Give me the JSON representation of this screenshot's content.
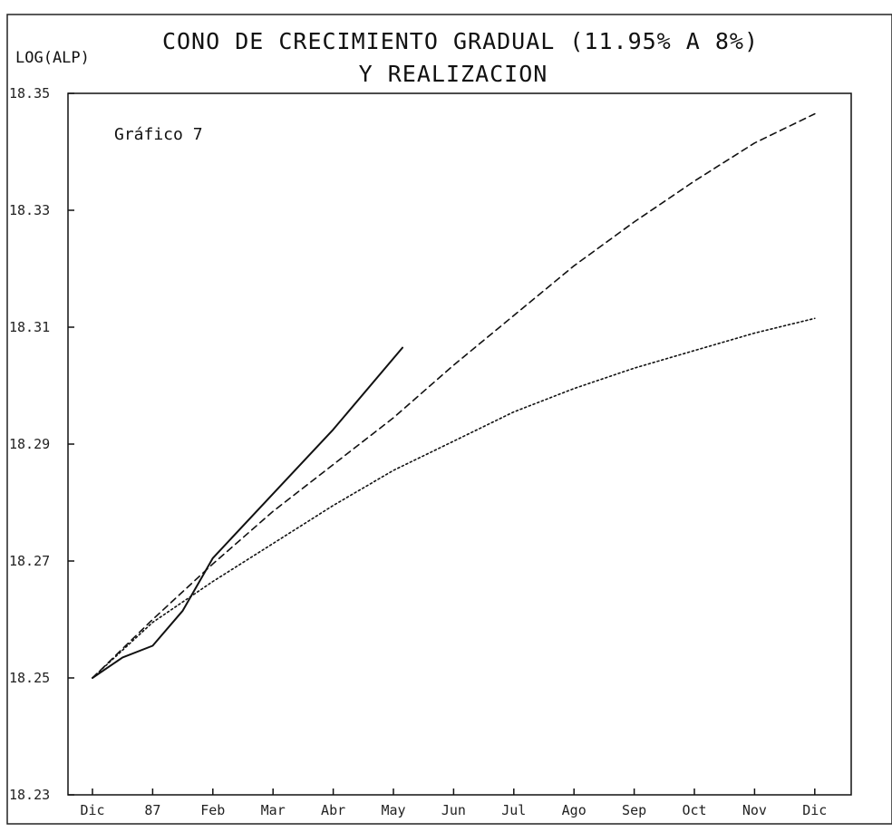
{
  "chart_data": {
    "type": "line",
    "title": "CONO DE CRECIMIENTO GRADUAL (11.95% A 8%)",
    "subtitle": "Y REALIZACION",
    "annotation": "Gráfico 7",
    "ylabel": "LOG(ALP)",
    "xlabel": "",
    "ylim": [
      18.23,
      18.35
    ],
    "yticks": [
      18.23,
      18.25,
      18.27,
      18.29,
      18.31,
      18.33,
      18.35
    ],
    "ytick_labels": [
      "18.23",
      "18.25",
      "18.27",
      "18.29",
      "18.31",
      "18.33",
      "18.35"
    ],
    "categories": [
      "Dic",
      "87",
      "Feb",
      "Mar",
      "Abr",
      "May",
      "Jun",
      "Jul",
      "Ago",
      "Sep",
      "Oct",
      "Nov",
      "Dic"
    ],
    "grid": false,
    "legend": "none",
    "series": [
      {
        "style": "solid",
        "color": "#111111",
        "x": [
          0,
          0.5,
          1,
          1.5,
          2,
          3,
          4,
          5.15
        ],
        "values": [
          18.25,
          18.2535,
          18.2555,
          18.2615,
          18.2705,
          18.2815,
          18.2925,
          18.3065
        ]
      },
      {
        "style": "dashed",
        "color": "#111111",
        "x": [
          0,
          1,
          2,
          3,
          4,
          5,
          6,
          7,
          8,
          9,
          10,
          11,
          12
        ],
        "values": [
          18.25,
          18.26,
          18.2695,
          18.2785,
          18.2865,
          18.2945,
          18.3035,
          18.312,
          18.3205,
          18.328,
          18.335,
          18.3415,
          18.3465
        ]
      },
      {
        "style": "dotted",
        "color": "#111111",
        "x": [
          0,
          1,
          2,
          3,
          4,
          5,
          6,
          7,
          8,
          9,
          10,
          11,
          12
        ],
        "values": [
          18.25,
          18.2595,
          18.2665,
          18.273,
          18.2795,
          18.2855,
          18.2905,
          18.2955,
          18.2995,
          18.303,
          18.306,
          18.309,
          18.3115
        ]
      }
    ]
  }
}
